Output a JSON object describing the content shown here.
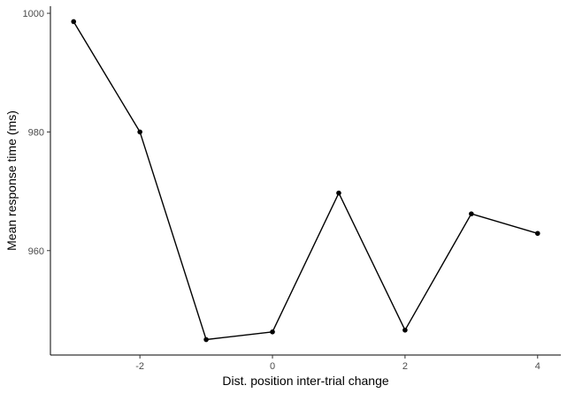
{
  "chart_data": {
    "type": "line",
    "xlabel": "Dist. position inter-trial change",
    "ylabel": "Mean response time (ms)",
    "x": [
      -3,
      -2,
      -1,
      0,
      1,
      2,
      3,
      4
    ],
    "series": [
      {
        "values": [
          998.6,
          980.0,
          945.0,
          946.3,
          969.7,
          946.6,
          966.2,
          962.9
        ]
      }
    ],
    "xlim": [
      -3.35,
      4.35
    ],
    "ylim": [
      942.4,
      1001.2
    ],
    "xticks": [
      -2,
      0,
      2,
      4
    ],
    "xtick_labels": [
      "-2",
      "0",
      "2",
      "4"
    ],
    "yticks": [
      960,
      980,
      1000
    ],
    "ytick_labels": [
      "960",
      "980",
      "1000"
    ],
    "grid": false,
    "legend": "none",
    "colors": {
      "line": "#000000",
      "point": "#000000",
      "axis": "#000000",
      "tick_text": "#4d4d4d"
    }
  }
}
